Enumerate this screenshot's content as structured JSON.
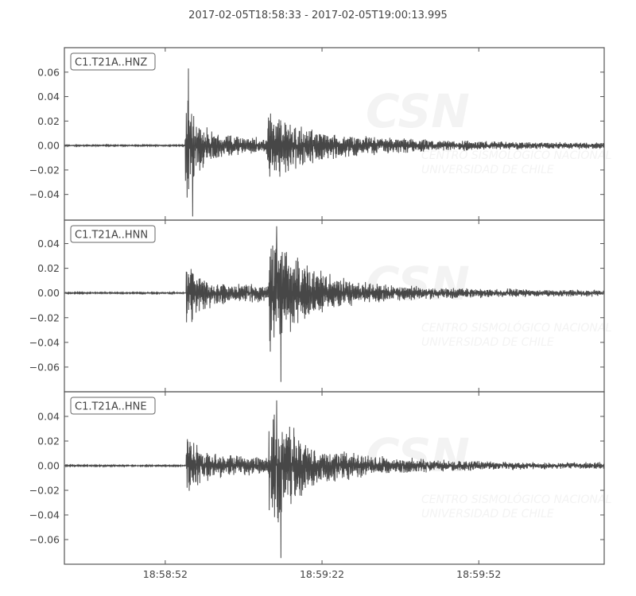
{
  "chart_data": {
    "type": "line",
    "title": "2017-02-05T18:58:33  -  2017-02-05T19:00:13.995",
    "xlabel": "",
    "ylabel": "",
    "xlim": [
      "18:58:32.7",
      "19:00:16.0"
    ],
    "xticks": [
      "18:58:52",
      "18:59:22",
      "18:59:52"
    ],
    "grid": false,
    "legend": "none",
    "line_color": "#474747",
    "watermark": {
      "logo": "CSN",
      "line1": "CENTRO SISMOLÓGICO NACIONAL",
      "line2": "UNIVERSIDAD DE CHILE"
    },
    "series": [
      {
        "name": "C1.T21A..HNZ",
        "ylim": [
          -0.061,
          0.08
        ],
        "yticks": [
          "0.06",
          "0.04",
          "0.02",
          "0.00",
          "−0.02",
          "−0.04"
        ],
        "ytick_values": [
          0.06,
          0.04,
          0.02,
          0,
          -0.02,
          -0.04
        ],
        "p_arrival": "18:58:55.8",
        "s_arrival": "18:59:11.5",
        "peak_max": 0.063,
        "peak_min": -0.058,
        "p_amp": 0.045,
        "s_amp": 0.022,
        "tail_amp": 0.003
      },
      {
        "name": "C1.T21A..HNN",
        "ylim": [
          -0.08,
          0.059
        ],
        "yticks": [
          "0.04",
          "0.02",
          "0.00",
          "−0.02",
          "−0.04",
          "−0.06"
        ],
        "ytick_values": [
          0.04,
          0.02,
          0,
          -0.02,
          -0.04,
          -0.06
        ],
        "p_arrival": "18:58:56.0",
        "s_arrival": "18:59:11.8",
        "peak_max": 0.054,
        "peak_min": -0.072,
        "p_amp": 0.022,
        "s_amp": 0.048,
        "tail_amp": 0.003
      },
      {
        "name": "C1.T21A..HNE",
        "ylim": [
          -0.08,
          0.06
        ],
        "yticks": [
          "0.04",
          "0.02",
          "0.00",
          "−0.02",
          "−0.04",
          "−0.06"
        ],
        "ytick_values": [
          0.04,
          0.02,
          0,
          -0.02,
          -0.04,
          -0.06
        ],
        "p_arrival": "18:58:56.0",
        "s_arrival": "18:59:11.8",
        "peak_max": 0.053,
        "peak_min": -0.075,
        "p_amp": 0.022,
        "s_amp": 0.048,
        "tail_amp": 0.003
      }
    ]
  }
}
